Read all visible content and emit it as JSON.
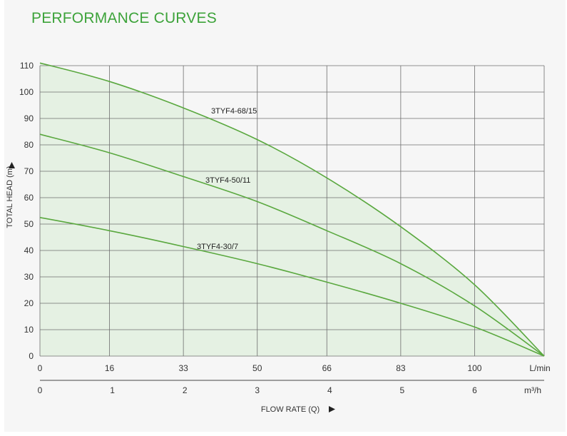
{
  "title": "PERFORMANCE CURVES",
  "chart_data": {
    "type": "line",
    "title": "PERFORMANCE CURVES",
    "ylabel": "TOTAL HEAD (m)",
    "xlabel": "FLOW RATE (Q)",
    "ylim": [
      0,
      110
    ],
    "xlim": [
      0,
      116
    ],
    "y_ticks": [
      "0",
      "10",
      "20",
      "30",
      "40",
      "50",
      "60",
      "70",
      "80",
      "90",
      "100",
      "110"
    ],
    "x_ticks_lpm": [
      "0",
      "16",
      "33",
      "50",
      "66",
      "83",
      "100"
    ],
    "x_unit_lpm": "L/min",
    "x_ticks_m3h": [
      "0",
      "1",
      "2",
      "3",
      "4",
      "5",
      "6"
    ],
    "x_unit_m3h": "m³/h",
    "grid": true,
    "fill_under_top_curve": true,
    "colors": {
      "line": "#5aa83f",
      "fill": "#e5f1e3",
      "title": "#3da33a",
      "grid": "#6e6e6e"
    },
    "series": [
      {
        "name": "3TYF4-68/15",
        "x": [
          0,
          16,
          33,
          50,
          66,
          83,
          100,
          116
        ],
        "y": [
          111,
          104,
          94,
          82,
          67.5,
          49,
          27,
          0
        ]
      },
      {
        "name": "3TYF4-50/11",
        "x": [
          0,
          16,
          33,
          50,
          66,
          83,
          100,
          116
        ],
        "y": [
          84,
          77,
          68,
          58.5,
          47.5,
          35,
          19,
          0
        ]
      },
      {
        "name": "3TYF4-30/7",
        "x": [
          0,
          16,
          33,
          50,
          66,
          83,
          100,
          116
        ],
        "y": [
          52.5,
          47.5,
          41.5,
          35,
          28,
          20,
          11,
          0
        ]
      }
    ]
  }
}
